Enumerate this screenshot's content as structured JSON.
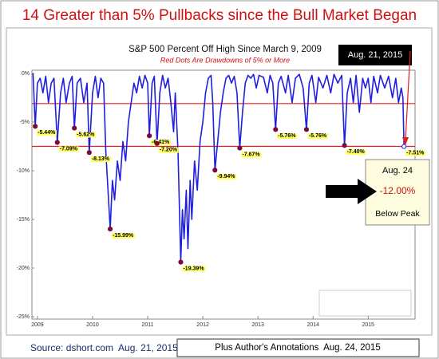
{
  "header": {
    "title": "14 Greater than 5% Pullbacks since the Bull Market Began"
  },
  "chart_data": {
    "type": "line",
    "title": "S&P 500 Percent Off High Since March 9, 2009",
    "subtitle": "Red Dots Are Drawdowns of 5% or More",
    "xlim": [
      2008.9,
      2015.85
    ],
    "xticks": [
      2009,
      2010,
      2011,
      2012,
      2013,
      2014,
      2015
    ],
    "ylim": [
      -25,
      0
    ],
    "yticks": [
      {
        "value": 0,
        "label": "0%"
      },
      {
        "value": -5,
        "label": "-5%"
      },
      {
        "value": -10,
        "label": "-10%"
      },
      {
        "value": -15,
        "label": "-15%"
      },
      {
        "value": -20,
        "label": "-20%"
      },
      {
        "value": -25,
        "label": "-25%"
      }
    ],
    "grid": false,
    "reference_lines": [
      -3.1,
      -7.5
    ],
    "reference_color": "#e02020",
    "series": [
      {
        "color": "#1f1fe0",
        "x": [
          2008.92,
          2008.96,
          2009.0,
          2009.05,
          2009.1,
          2009.15,
          2009.2,
          2009.25,
          2009.3,
          2009.36,
          2009.42,
          2009.47,
          2009.52,
          2009.58,
          2009.63,
          2009.67,
          2009.72,
          2009.78,
          2009.84,
          2009.9,
          2009.94,
          2010.0,
          2010.05,
          2010.1,
          2010.15,
          2010.2,
          2010.24,
          2010.28,
          2010.32,
          2010.36,
          2010.4,
          2010.45,
          2010.5,
          2010.55,
          2010.6,
          2010.65,
          2010.7,
          2010.75,
          2010.8,
          2010.85,
          2010.9,
          2010.95,
          2011.0,
          2011.03,
          2011.08,
          2011.12,
          2011.17,
          2011.22,
          2011.27,
          2011.32,
          2011.37,
          2011.42,
          2011.47,
          2011.5,
          2011.55,
          2011.6,
          2011.63,
          2011.66,
          2011.7,
          2011.73,
          2011.77,
          2011.8,
          2011.85,
          2011.9,
          2011.95,
          2012.0,
          2012.05,
          2012.1,
          2012.15,
          2012.18,
          2012.22,
          2012.27,
          2012.32,
          2012.37,
          2012.42,
          2012.47,
          2012.52,
          2012.57,
          2012.62,
          2012.67,
          2012.72,
          2012.77,
          2012.82,
          2012.87,
          2012.92,
          2012.97,
          2013.02,
          2013.1,
          2013.17,
          2013.22,
          2013.27,
          2013.32,
          2013.37,
          2013.42,
          2013.5,
          2013.55,
          2013.62,
          2013.68,
          2013.75,
          2013.82,
          2013.88,
          2013.93,
          2013.98,
          2014.05,
          2014.1,
          2014.18,
          2014.25,
          2014.32,
          2014.38,
          2014.45,
          2014.52,
          2014.57,
          2014.62,
          2014.68,
          2014.73,
          2014.78,
          2014.84,
          2014.9,
          2014.95,
          2015.0,
          2015.05,
          2015.1,
          2015.17,
          2015.22,
          2015.3,
          2015.37,
          2015.44,
          2015.5,
          2015.55,
          2015.6,
          2015.63,
          2015.65
        ],
        "values": [
          0,
          -5.44,
          -1,
          -0.5,
          -2,
          -0.3,
          -3,
          -1,
          -0.5,
          -7.09,
          -2,
          -0.5,
          -3,
          -1,
          -0.3,
          -5.62,
          -1,
          -0.5,
          -3,
          -1,
          -8.13,
          -2,
          -0.3,
          -2.5,
          -0.5,
          -1,
          -8,
          -12,
          -15.99,
          -11,
          -13,
          -9,
          -11,
          -7,
          -9,
          -5,
          -3,
          -1,
          -2,
          -0.3,
          -1.5,
          -0.2,
          -1,
          -6.41,
          -1,
          -0.3,
          -7.2,
          -2,
          -0.2,
          -1.5,
          -0.5,
          -3,
          -6,
          -2,
          -8,
          -19.39,
          -14,
          -17,
          -12,
          -18,
          -11,
          -15,
          -9,
          -12,
          -7,
          -5,
          -2,
          -0.5,
          -0.2,
          -3,
          -9.94,
          -7,
          -4,
          -2,
          -0.5,
          -0.2,
          -1,
          -0.3,
          -2,
          -7.67,
          -4,
          -1,
          -0.2,
          -0.5,
          -0.1,
          -1.5,
          -0.2,
          -0.4,
          -2,
          -0.2,
          -1,
          -5.76,
          -1,
          -0.3,
          -2,
          -0.2,
          -3,
          -0.5,
          -0.1,
          -1.5,
          -5.76,
          -1,
          -0.2,
          -3,
          -0.4,
          -1.5,
          -0.2,
          -2,
          -0.1,
          -1,
          -0.2,
          -7.4,
          -2,
          -0.5,
          -3,
          -0.2,
          -4,
          -0.5,
          -1.5,
          -0.5,
          -3,
          -0.3,
          -2,
          -0.2,
          -1.5,
          -0.3,
          -2.5,
          -0.5,
          -3,
          -1.5,
          -2.5,
          -7.51
        ]
      }
    ],
    "drawdowns": {
      "color": "#7a0a3a",
      "label_color": "#ffff66",
      "x": [
        2008.96,
        2009.36,
        2009.67,
        2009.94,
        2010.32,
        2011.03,
        2011.17,
        2011.6,
        2012.22,
        2012.67,
        2013.32,
        2013.88,
        2014.57,
        2015.65
      ],
      "values": [
        -5.44,
        -7.09,
        -5.62,
        -8.13,
        -15.99,
        -6.41,
        -7.2,
        -19.39,
        -9.94,
        -7.67,
        -5.76,
        -5.76,
        -7.4,
        -7.51
      ],
      "value_labels": [
        "-5.44%",
        "-7.09%",
        "-5.62%",
        "-8.13%",
        "-15.99%",
        "-6.41%",
        "-7.20%",
        "-19.39%",
        "-9.94%",
        "-7.67%",
        "-5.76%",
        "-5.76%",
        "-7.40%",
        "-7.51%"
      ]
    }
  },
  "annotations": {
    "date_box": "Aug. 21, 2015",
    "peak_box": {
      "date": "Aug. 24",
      "change": "-12.00%",
      "note": "Below Peak"
    },
    "source": "Source: dshort.com  Aug. 21, 2015",
    "author_note": "Plus Author's Annotations  Aug. 24, 2015"
  }
}
